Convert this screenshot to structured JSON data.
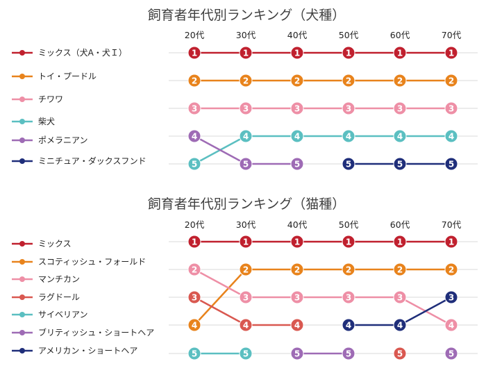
{
  "colors": {
    "red": "#c0202e",
    "orange": "#e8831c",
    "pink": "#ee8fa6",
    "coral": "#d95850",
    "teal": "#5bbfc1",
    "purple": "#9e6bb5",
    "navy": "#1f2e7a"
  },
  "chart_data": [
    {
      "type": "line",
      "title": "飼育者年代別ランキング（犬種）",
      "categories": [
        "20代",
        "30代",
        "40代",
        "50代",
        "60代",
        "70代"
      ],
      "rank_max": 5,
      "series": [
        {
          "name": "ミックス（犬A・犬Ｉ）",
          "color": "red",
          "ranks": [
            1,
            1,
            1,
            1,
            1,
            1
          ]
        },
        {
          "name": "トイ・プードル",
          "color": "orange",
          "ranks": [
            2,
            2,
            2,
            2,
            2,
            2
          ]
        },
        {
          "name": "チワワ",
          "color": "pink",
          "ranks": [
            3,
            3,
            3,
            3,
            3,
            3
          ]
        },
        {
          "name": "柴犬",
          "color": "teal",
          "ranks": [
            5,
            4,
            4,
            4,
            4,
            4
          ]
        },
        {
          "name": "ポメラニアン",
          "color": "purple",
          "ranks": [
            4,
            5,
            5,
            null,
            null,
            null
          ]
        },
        {
          "name": "ミニチュア・ダックスフンド",
          "color": "navy",
          "ranks": [
            null,
            null,
            null,
            5,
            5,
            5
          ]
        }
      ]
    },
    {
      "type": "line",
      "title": "飼育者年代別ランキング（猫種）",
      "categories": [
        "20代",
        "30代",
        "40代",
        "50代",
        "60代",
        "70代"
      ],
      "rank_max": 5,
      "series": [
        {
          "name": "ミックス",
          "color": "red",
          "ranks": [
            1,
            1,
            1,
            1,
            1,
            1
          ]
        },
        {
          "name": "スコティッシュ・フォールド",
          "color": "orange",
          "ranks": [
            4,
            2,
            2,
            2,
            2,
            2
          ]
        },
        {
          "name": "マンチカン",
          "color": "pink",
          "ranks": [
            2,
            3,
            3,
            3,
            3,
            4
          ]
        },
        {
          "name": "ラグドール",
          "color": "coral",
          "ranks": [
            3,
            4,
            4,
            null,
            5,
            null
          ]
        },
        {
          "name": "サイベリアン",
          "color": "teal",
          "ranks": [
            5,
            5,
            null,
            null,
            null,
            null
          ]
        },
        {
          "name": "ブリティッシュ・ショートヘア",
          "color": "purple",
          "ranks": [
            null,
            null,
            5,
            5,
            null,
            5
          ]
        },
        {
          "name": "アメリカン・ショートヘア",
          "color": "navy",
          "ranks": [
            null,
            null,
            null,
            4,
            4,
            3
          ]
        }
      ]
    }
  ]
}
